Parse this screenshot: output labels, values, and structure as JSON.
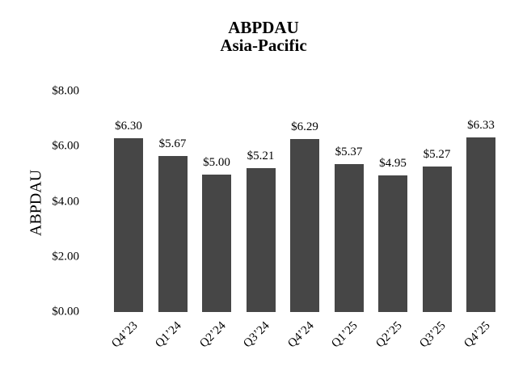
{
  "chart": {
    "title_line1": "ABPDAU",
    "title_line2": "Asia-Pacific",
    "ylabel": "ABPDAU"
  },
  "chart_data": {
    "type": "bar",
    "title": "ABPDAU",
    "subtitle": "Asia-Pacific",
    "categories": [
      "Q4’23",
      "Q1’24",
      "Q2’24",
      "Q3’24",
      "Q4’24",
      "Q1’25",
      "Q2’25",
      "Q3’25",
      "Q4’25"
    ],
    "values": [
      6.3,
      5.67,
      5.0,
      5.21,
      6.29,
      5.37,
      4.95,
      5.27,
      6.33
    ],
    "data_labels": [
      "$6.30",
      "$5.67",
      "$5.00",
      "$5.21",
      "$6.29",
      "$5.37",
      "$4.95",
      "$5.27",
      "$6.33"
    ],
    "xlabel": "",
    "ylabel": "ABPDAU",
    "ylim": [
      0,
      8
    ],
    "yticks": [
      {
        "value": 0,
        "label": "$0.00"
      },
      {
        "value": 2,
        "label": "$2.00"
      },
      {
        "value": 4,
        "label": "$4.00"
      },
      {
        "value": 6,
        "label": "$6.00"
      },
      {
        "value": 8,
        "label": "$8.00"
      }
    ],
    "grid": false,
    "legend": false,
    "bar_color": "#464646",
    "text_color": "#000000",
    "background_color": "#ffffff"
  }
}
